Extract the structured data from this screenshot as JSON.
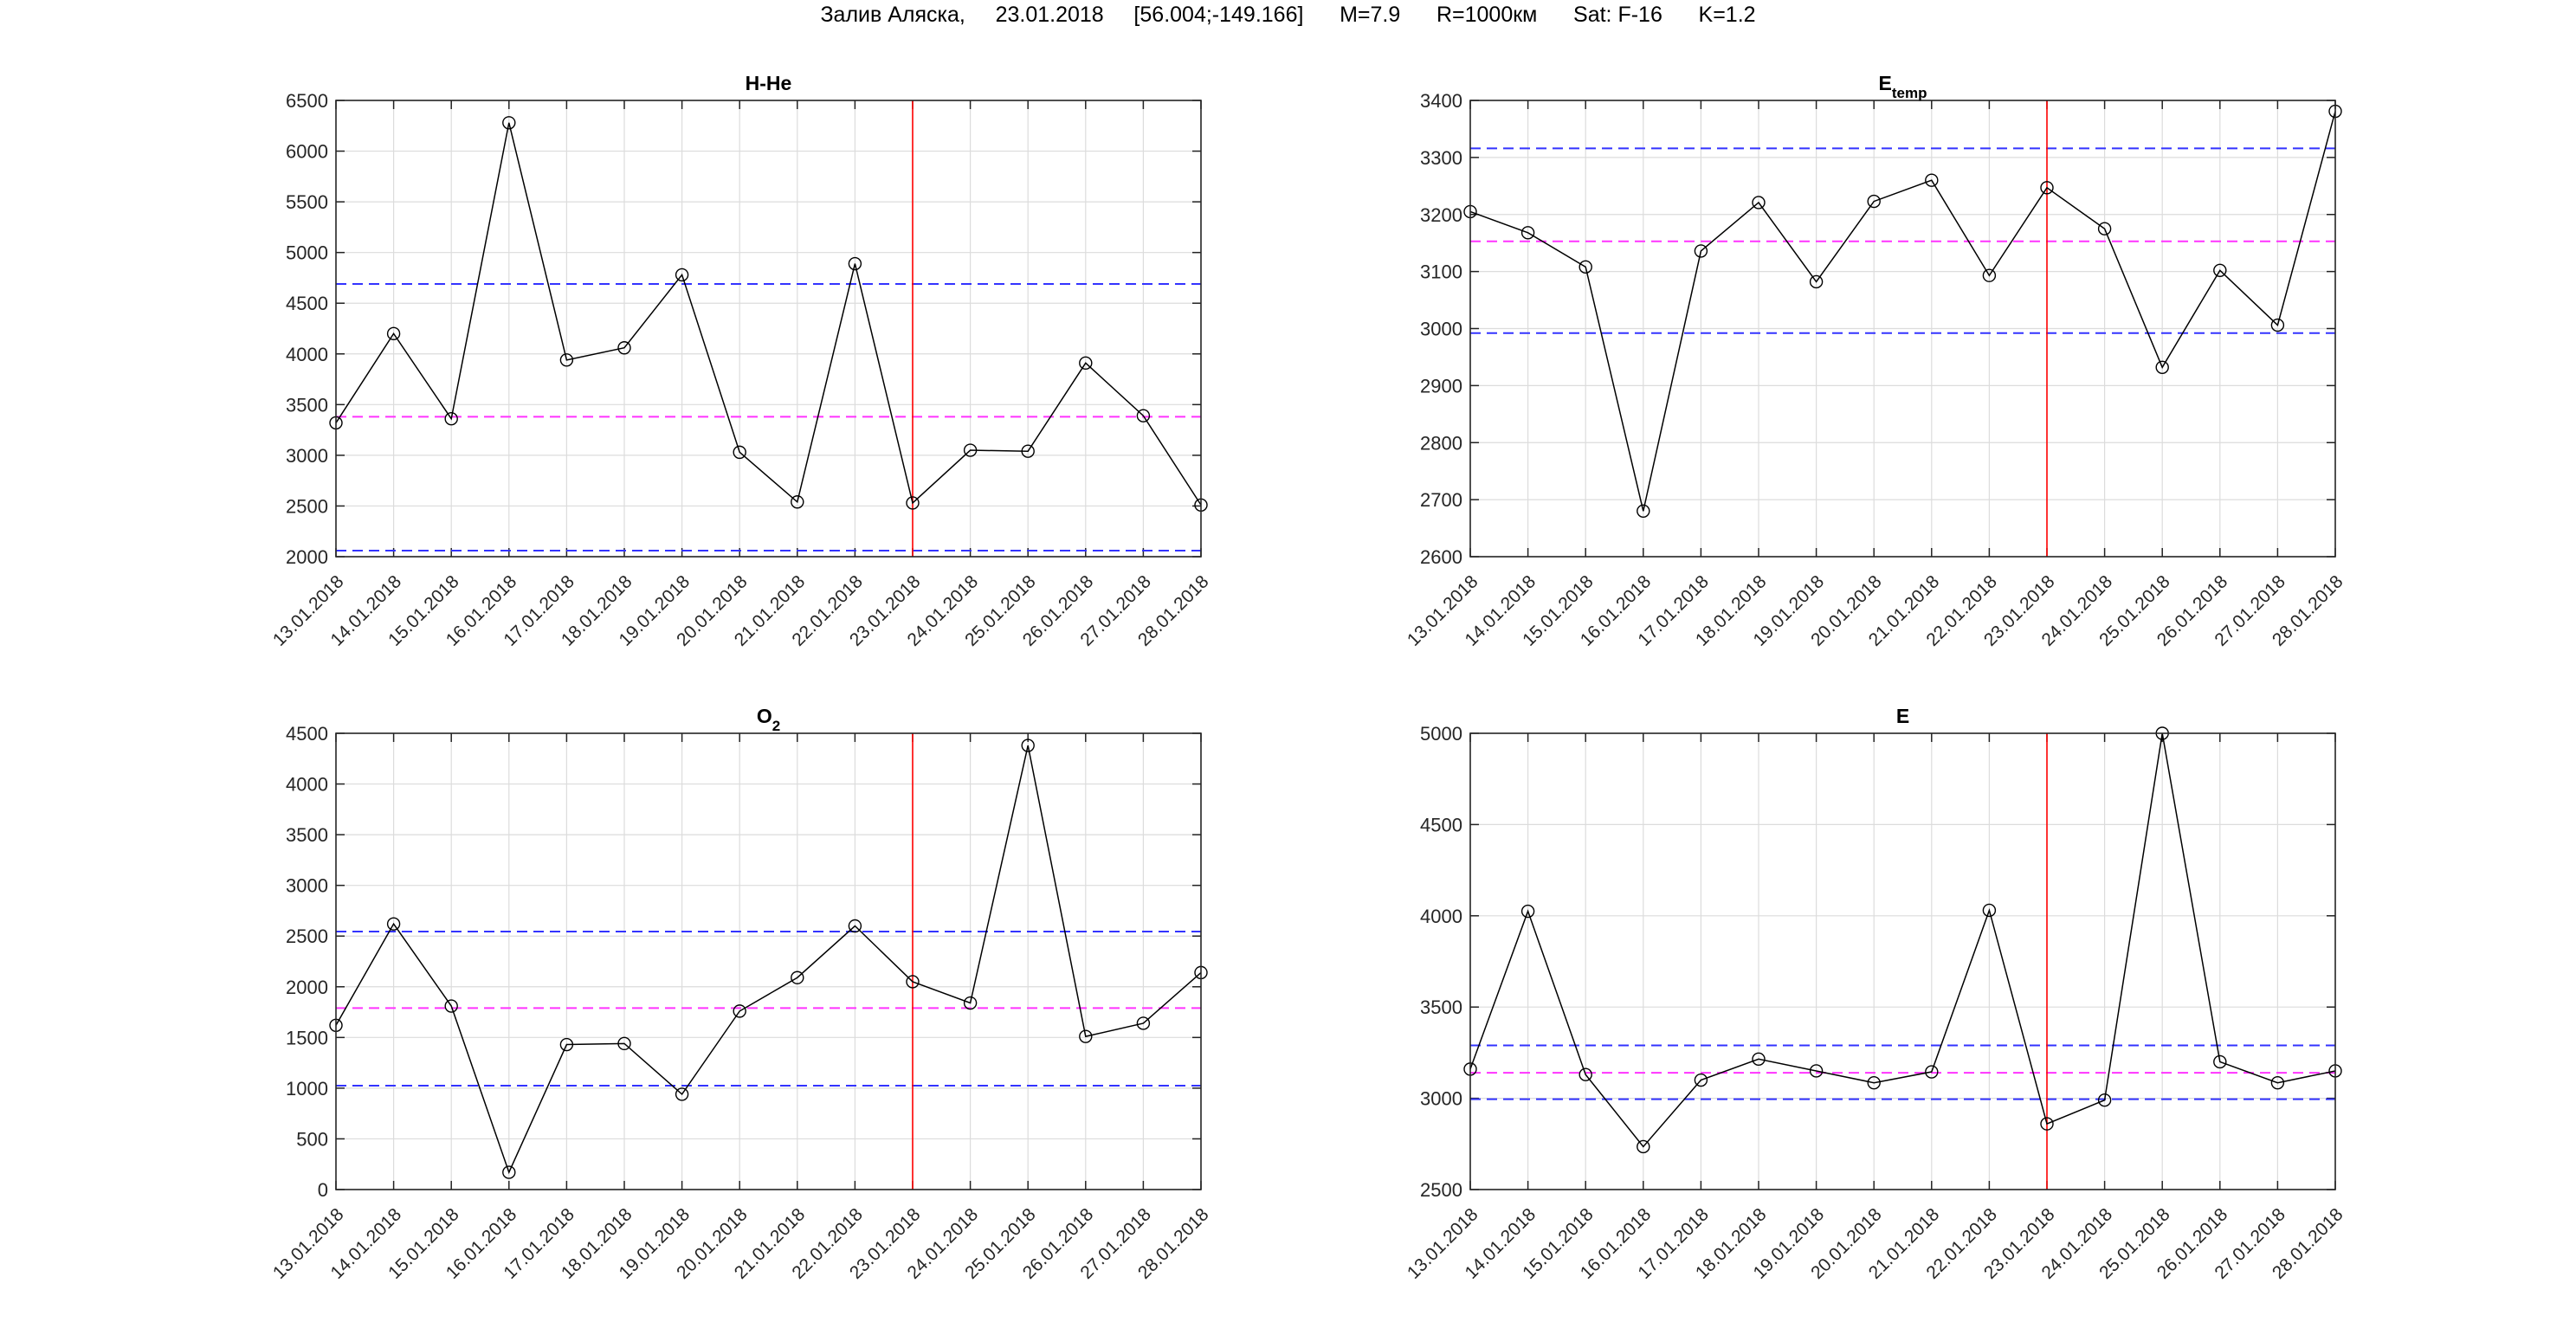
{
  "figure_title": "Залив Аляска,     23.01.2018     [56.004;-149.166]      M=7.9      R=1000км      Sat: F-16      K=1.2",
  "colors": {
    "series": "#000000",
    "upper_lower": "#3333ff",
    "mean": "#ff33ff",
    "event_line": "#ff0000",
    "grid": "#dcdcdc"
  },
  "chart_data": [
    {
      "type": "line",
      "title": "H-He",
      "title_sub": "",
      "categories": [
        "13.01.2018",
        "14.01.2018",
        "15.01.2018",
        "16.01.2018",
        "17.01.2018",
        "18.01.2018",
        "19.01.2018",
        "20.01.2018",
        "21.01.2018",
        "22.01.2018",
        "23.01.2018",
        "24.01.2018",
        "25.01.2018",
        "26.01.2018",
        "27.01.2018",
        "28.01.2018"
      ],
      "values": [
        3320,
        4200,
        3360,
        6280,
        3940,
        4060,
        4780,
        3030,
        2540,
        4890,
        2530,
        3050,
        3040,
        3910,
        3390,
        2510
      ],
      "ylim": [
        2000,
        6500
      ],
      "yticks": [
        2000,
        2500,
        3000,
        3500,
        4000,
        4500,
        5000,
        5500,
        6000,
        6500
      ],
      "hlines": {
        "upper": 4690,
        "mean": 3380,
        "lower": 2060
      },
      "event_date": "23.01.2018",
      "grid": true
    },
    {
      "type": "line",
      "title": "E",
      "title_sub": "temp",
      "categories": [
        "13.01.2018",
        "14.01.2018",
        "15.01.2018",
        "16.01.2018",
        "17.01.2018",
        "18.01.2018",
        "19.01.2018",
        "20.01.2018",
        "21.01.2018",
        "22.01.2018",
        "23.01.2018",
        "24.01.2018",
        "25.01.2018",
        "26.01.2018",
        "27.01.2018",
        "28.01.2018"
      ],
      "values": [
        3205,
        3168,
        3108,
        2680,
        3136,
        3221,
        3082,
        3223,
        3260,
        3093,
        3247,
        3175,
        2932,
        3102,
        3006,
        3381
      ],
      "ylim": [
        2600,
        3400
      ],
      "yticks": [
        2600,
        2700,
        2800,
        2900,
        3000,
        3100,
        3200,
        3300,
        3400
      ],
      "hlines": {
        "upper": 3316,
        "mean": 3153,
        "lower": 2992
      },
      "event_date": "23.01.2018",
      "grid": true
    },
    {
      "type": "line",
      "title": "O",
      "title_sub": "2",
      "categories": [
        "13.01.2018",
        "14.01.2018",
        "15.01.2018",
        "16.01.2018",
        "17.01.2018",
        "18.01.2018",
        "19.01.2018",
        "20.01.2018",
        "21.01.2018",
        "22.01.2018",
        "23.01.2018",
        "24.01.2018",
        "25.01.2018",
        "26.01.2018",
        "27.01.2018",
        "28.01.2018"
      ],
      "values": [
        1620,
        2620,
        1810,
        170,
        1430,
        1440,
        940,
        1760,
        2090,
        2600,
        2050,
        1840,
        4380,
        1510,
        1640,
        2140
      ],
      "ylim": [
        0,
        4500
      ],
      "yticks": [
        0,
        500,
        1000,
        1500,
        2000,
        2500,
        3000,
        3500,
        4000,
        4500
      ],
      "hlines": {
        "upper": 2545,
        "mean": 1790,
        "lower": 1025
      },
      "event_date": "23.01.2018",
      "grid": true
    },
    {
      "type": "line",
      "title": "E",
      "title_sub": "",
      "categories": [
        "13.01.2018",
        "14.01.2018",
        "15.01.2018",
        "16.01.2018",
        "17.01.2018",
        "18.01.2018",
        "19.01.2018",
        "20.01.2018",
        "21.01.2018",
        "22.01.2018",
        "23.01.2018",
        "24.01.2018",
        "25.01.2018",
        "26.01.2018",
        "27.01.2018",
        "28.01.2018"
      ],
      "values": [
        3160,
        4025,
        3130,
        2735,
        3100,
        3215,
        3150,
        3085,
        3145,
        4030,
        2860,
        2990,
        5000,
        3200,
        3085,
        3150
      ],
      "ylim": [
        2500,
        5000
      ],
      "yticks": [
        2500,
        3000,
        3500,
        4000,
        4500,
        5000
      ],
      "hlines": {
        "upper": 3290,
        "mean": 3140,
        "lower": 2995
      },
      "event_date": "23.01.2018",
      "grid": true
    }
  ]
}
